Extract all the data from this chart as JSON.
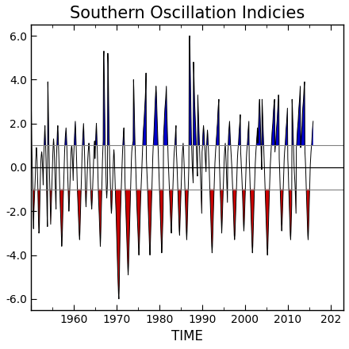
{
  "title": "Southern Oscillation Indicies",
  "xlabel": "TIME",
  "ylim": [
    -6.5,
    6.5
  ],
  "yticks": [
    -6.0,
    -4.0,
    -2.0,
    0.0,
    2.0,
    4.0,
    6.0
  ],
  "xlim": [
    1950,
    2023
  ],
  "threshold": 1.0,
  "blue_color": "#0000CC",
  "red_color": "#CC0000",
  "line_color": "#000000",
  "bg_color": "#FFFFFF",
  "title_fontsize": 15,
  "label_fontsize": 12,
  "tick_fontsize": 10,
  "soi_monthly": [
    4.3,
    3.8,
    2.3,
    1.1,
    0.3,
    -0.2,
    -0.9,
    -2.3,
    -2.8,
    -2.0,
    -1.6,
    -1.2,
    -0.8,
    -0.4,
    0.3,
    0.6,
    0.9,
    0.7,
    0.3,
    -0.3,
    -0.9,
    -1.8,
    -2.5,
    -3.0,
    -2.9,
    -2.1,
    -1.3,
    -0.5,
    0.1,
    0.4,
    0.6,
    0.7,
    0.5,
    0.1,
    -0.3,
    -0.8,
    0.2,
    0.7,
    1.2,
    1.6,
    1.9,
    1.4,
    0.9,
    0.3,
    -0.4,
    -1.3,
    -2.2,
    -2.7,
    3.9,
    3.2,
    2.1,
    1.0,
    0.2,
    -0.5,
    -1.1,
    -1.9,
    -2.6,
    -2.1,
    -1.5,
    -1.0,
    -0.5,
    0.1,
    0.6,
    1.0,
    1.3,
    1.1,
    0.7,
    0.2,
    -0.4,
    -0.9,
    -1.5,
    -1.9,
    0.4,
    0.8,
    1.3,
    1.7,
    1.9,
    1.5,
    1.0,
    0.5,
    -0.1,
    -0.7,
    -1.3,
    -1.8,
    -2.2,
    -2.7,
    -3.2,
    -3.6,
    -3.3,
    -2.8,
    -2.1,
    -1.5,
    -1.0,
    -0.4,
    0.2,
    0.7,
    1.1,
    1.4,
    1.6,
    1.8,
    1.5,
    1.1,
    0.6,
    0.1,
    -0.5,
    -1.1,
    -1.6,
    -2.0,
    -1.7,
    -1.2,
    -0.7,
    -0.2,
    0.3,
    0.7,
    0.9,
    1.0,
    0.8,
    0.4,
    -0.1,
    -0.6,
    0.3,
    0.7,
    1.1,
    1.5,
    1.8,
    2.1,
    1.7,
    1.2,
    0.7,
    0.1,
    -0.5,
    -1.1,
    -1.5,
    -1.9,
    -2.3,
    -2.7,
    -3.1,
    -3.3,
    -2.9,
    -2.3,
    -1.7,
    -1.1,
    -0.5,
    0.1,
    0.6,
    1.0,
    1.4,
    1.7,
    2.0,
    1.6,
    1.1,
    0.5,
    -0.2,
    -0.9,
    -1.5,
    -1.8,
    -1.3,
    -0.8,
    -0.4,
    0.0,
    0.4,
    0.7,
    0.9,
    1.1,
    0.9,
    0.5,
    0.0,
    -0.5,
    -1.0,
    -1.4,
    -1.7,
    -1.9,
    -1.6,
    -1.2,
    -0.7,
    -0.2,
    0.3,
    0.7,
    1.0,
    1.2,
    0.4,
    0.8,
    1.3,
    1.7,
    2.0,
    1.6,
    1.1,
    0.5,
    -0.2,
    -0.8,
    -1.4,
    -1.8,
    -2.2,
    -2.7,
    -3.2,
    -3.6,
    -3.2,
    -2.5,
    -1.8,
    -1.1,
    -0.4,
    0.3,
    0.8,
    1.2,
    5.0,
    5.3,
    4.1,
    2.8,
    1.5,
    0.7,
    0.1,
    -0.5,
    -1.1,
    -1.4,
    -1.1,
    -0.7,
    5.2,
    4.7,
    3.4,
    2.2,
    1.2,
    0.5,
    -0.1,
    -0.7,
    -1.3,
    -1.8,
    -2.1,
    -1.9,
    -1.4,
    -0.9,
    -0.4,
    0.1,
    0.5,
    0.8,
    0.6,
    0.1,
    -0.4,
    -1.0,
    -1.6,
    -2.0,
    -2.6,
    -3.2,
    -3.8,
    -4.4,
    -4.9,
    -5.4,
    -5.8,
    -6.0,
    -5.4,
    -4.3,
    -3.3,
    -2.4,
    -1.8,
    -1.3,
    -0.8,
    -0.3,
    0.2,
    0.6,
    1.0,
    1.3,
    1.6,
    1.8,
    1.3,
    0.8,
    -0.6,
    -1.2,
    -1.7,
    -2.2,
    -2.7,
    -3.2,
    -3.7,
    -4.1,
    -4.6,
    -4.9,
    -4.5,
    -3.9,
    -3.3,
    -2.7,
    -2.1,
    -1.5,
    -0.9,
    -0.3,
    0.3,
    0.7,
    0.9,
    1.0,
    1.1,
    1.2,
    4.0,
    3.5,
    2.7,
    1.9,
    1.2,
    0.7,
    0.2,
    -0.4,
    -1.0,
    -1.6,
    -2.0,
    -2.4,
    -2.8,
    -3.2,
    -3.7,
    -4.0,
    -3.7,
    -3.1,
    -2.5,
    -1.9,
    -1.4,
    -1.0,
    -0.6,
    -0.2,
    0.3,
    0.7,
    1.1,
    1.5,
    1.8,
    2.0,
    2.3,
    2.6,
    2.9,
    3.2,
    3.6,
    4.3,
    0.4,
    0.0,
    -0.4,
    -0.8,
    -1.3,
    -1.8,
    -2.2,
    -2.7,
    -3.2,
    -3.7,
    -4.0,
    -3.6,
    -3.0,
    -2.4,
    -1.8,
    -1.2,
    -0.6,
    0.0,
    0.5,
    0.9,
    1.2,
    1.5,
    1.9,
    2.3,
    2.7,
    3.1,
    3.4,
    3.7,
    3.4,
    2.8,
    2.3,
    1.8,
    1.3,
    0.8,
    0.3,
    -0.2,
    -0.7,
    -1.2,
    -1.7,
    -2.2,
    -2.7,
    -3.1,
    -3.5,
    -3.9,
    -3.6,
    -3.0,
    -2.4,
    -1.9,
    1.4,
    1.7,
    2.0,
    2.4,
    2.7,
    2.9,
    3.1,
    3.4,
    3.7,
    2.7,
    2.1,
    1.5,
    0.9,
    0.4,
    0.0,
    -0.4,
    -0.8,
    -1.2,
    -1.6,
    -2.0,
    -2.4,
    -2.8,
    -3.0,
    -2.5,
    -2.0,
    -1.5,
    -1.0,
    -0.5,
    0.0,
    0.4,
    0.7,
    0.9,
    1.1,
    1.4,
    1.7,
    1.9,
    0.7,
    0.4,
    0.0,
    -0.5,
    -1.0,
    -1.5,
    -2.0,
    -2.5,
    -2.9,
    -3.1,
    -2.6,
    -2.1,
    -1.6,
    -1.1,
    -0.6,
    -0.1,
    0.4,
    0.7,
    0.9,
    1.1,
    0.8,
    0.4,
    0.0,
    -0.5,
    -1.0,
    -1.5,
    -2.0,
    -2.5,
    -3.0,
    -3.3,
    -2.9,
    -2.3,
    -1.7,
    -1.1,
    -0.5,
    0.1,
    5.7,
    6.0,
    5.4,
    4.4,
    3.3,
    2.3,
    1.4,
    0.8,
    0.3,
    -0.1,
    -0.4,
    -0.7,
    4.8,
    4.3,
    3.6,
    3.0,
    2.6,
    2.2,
    1.8,
    1.3,
    0.8,
    0.3,
    -0.1,
    -0.4,
    3.3,
    2.8,
    2.3,
    1.8,
    1.4,
    0.9,
    0.4,
    -0.1,
    -0.6,
    -1.1,
    -1.6,
    -2.1,
    0.7,
    0.9,
    1.4,
    1.7,
    1.9,
    1.7,
    1.4,
    1.0,
    0.7,
    0.4,
    0.1,
    -0.2,
    0.9,
    1.1,
    1.4,
    1.7,
    1.5,
    1.1,
    0.7,
    0.3,
    -0.1,
    -0.6,
    -1.1,
    -1.6,
    -2.1,
    -2.6,
    -3.1,
    -3.6,
    -3.9,
    -3.6,
    -3.0,
    -2.4,
    -1.8,
    -1.3,
    -0.8,
    -0.3,
    0.2,
    0.5,
    0.8,
    1.0,
    1.3,
    1.5,
    1.8,
    2.0,
    2.4,
    2.7,
    2.9,
    3.1,
    0.4,
    0.0,
    -0.6,
    -1.1,
    -1.6,
    -2.1,
    -2.6,
    -3.0,
    -2.6,
    -2.1,
    -1.6,
    -1.1,
    -0.6,
    0.0,
    0.4,
    0.7,
    0.9,
    1.1,
    0.7,
    0.3,
    -0.1,
    -0.6,
    -1.1,
    -1.6,
    0.7,
    0.9,
    1.4,
    1.7,
    1.9,
    2.1,
    1.7,
    1.3,
    1.0,
    0.7,
    0.4,
    0.1,
    -0.3,
    -0.7,
    -1.1,
    -1.6,
    -2.1,
    -2.6,
    -3.1,
    -3.3,
    -3.1,
    -2.6,
    -2.1,
    -1.6,
    -1.1,
    -0.6,
    -0.1,
    0.4,
    0.7,
    0.9,
    1.1,
    1.4,
    1.7,
    1.9,
    2.1,
    2.4,
    0.7,
    0.4,
    0.0,
    -0.3,
    -0.7,
    -1.1,
    -1.6,
    -2.1,
    -2.6,
    -2.9,
    -2.6,
    -2.1,
    -1.6,
    -1.1,
    -0.6,
    -0.1,
    0.4,
    0.7,
    0.9,
    1.1,
    1.4,
    1.7,
    1.9,
    2.1,
    0.4,
    0.0,
    -0.6,
    -1.1,
    -1.6,
    -2.1,
    -2.6,
    -3.1,
    -3.6,
    -3.9,
    -3.6,
    -3.0,
    -2.4,
    -1.8,
    -1.3,
    -0.8,
    -0.3,
    0.2,
    0.5,
    0.8,
    1.0,
    1.3,
    1.5,
    1.8,
    1.1,
    1.4,
    1.9,
    2.4,
    2.9,
    3.1,
    2.7,
    2.1,
    1.5,
    0.9,
    0.4,
    -0.1,
    3.1,
    2.7,
    2.2,
    1.7,
    1.3,
    0.8,
    0.3,
    -0.2,
    -0.7,
    -1.2,
    -1.7,
    -2.2,
    -2.7,
    -3.2,
    -3.7,
    -4.0,
    -3.7,
    -3.1,
    -2.5,
    -1.9,
    -1.4,
    -0.9,
    -0.4,
    0.1,
    0.4,
    0.7,
    1.0,
    1.3,
    1.6,
    1.8,
    2.0,
    2.3,
    2.6,
    2.8,
    3.0,
    3.1,
    0.7,
    0.9,
    1.1,
    1.4,
    1.7,
    1.9,
    2.1,
    2.4,
    2.7,
    3.0,
    3.3,
    3.1,
    0.4,
    0.0,
    -0.6,
    -1.1,
    -1.6,
    -2.1,
    -2.6,
    -2.9,
    -2.6,
    -2.1,
    -1.6,
    -1.1,
    -0.6,
    0.0,
    0.4,
    0.7,
    0.9,
    1.1,
    1.4,
    1.7,
    1.9,
    2.1,
    2.4,
    2.7,
    0.4,
    0.0,
    -0.6,
    -1.1,
    -1.6,
    -2.1,
    -2.6,
    -3.1,
    -3.3,
    -2.9,
    -2.3,
    -1.7,
    3.1,
    2.7,
    2.1,
    1.5,
    0.9,
    0.4,
    -0.1,
    -0.4,
    -0.7,
    -1.1,
    -1.6,
    -2.1,
    0.9,
    1.1,
    1.4,
    1.7,
    1.9,
    2.1,
    2.4,
    2.7,
    2.9,
    3.1,
    3.4,
    3.7,
    0.9,
    1.1,
    1.4,
    1.7,
    1.9,
    2.4,
    2.7,
    2.9,
    3.1,
    3.4,
    3.7,
    3.9,
    0.7,
    0.4,
    0.0,
    -0.6,
    -1.1,
    -1.6,
    -2.1,
    -2.6,
    -3.1,
    -3.3,
    -2.9,
    -2.3,
    -1.7,
    -1.1,
    -0.5,
    0.1,
    0.4,
    0.7,
    0.9,
    1.1,
    1.4,
    1.7,
    1.9,
    2.1
  ]
}
